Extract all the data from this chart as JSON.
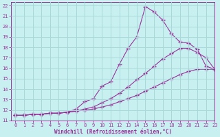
{
  "xlabel": "Windchill (Refroidissement éolien,°C)",
  "bg_color": "#c8f0f0",
  "grid_color": "#a8d8d8",
  "line_color": "#993399",
  "xlim": [
    -0.5,
    23
  ],
  "ylim": [
    11,
    22.3
  ],
  "xticks": [
    0,
    1,
    2,
    3,
    4,
    5,
    6,
    7,
    8,
    9,
    10,
    11,
    12,
    13,
    14,
    15,
    16,
    17,
    18,
    19,
    20,
    21,
    22,
    23
  ],
  "yticks": [
    11,
    12,
    13,
    14,
    15,
    16,
    17,
    18,
    19,
    20,
    21,
    22
  ],
  "curve1_x": [
    0,
    1,
    2,
    3,
    4,
    5,
    6,
    7,
    8,
    9,
    10,
    11,
    12,
    13,
    14,
    15,
    16,
    17,
    18,
    19,
    20,
    21,
    22,
    23
  ],
  "curve1_y": [
    11.5,
    11.5,
    11.6,
    11.6,
    11.7,
    11.7,
    11.8,
    12.1,
    12.8,
    13.1,
    14.3,
    14.7,
    16.4,
    17.9,
    19.0,
    21.9,
    21.4,
    20.6,
    19.3,
    18.5,
    18.4,
    17.8,
    16.2,
    15.9
  ],
  "curve2_x": [
    0,
    1,
    2,
    3,
    4,
    5,
    6,
    7,
    8,
    9,
    10,
    11,
    12,
    13,
    14,
    15,
    16,
    17,
    18,
    19,
    20,
    21,
    22,
    23
  ],
  "curve2_y": [
    11.5,
    11.5,
    11.6,
    11.6,
    11.7,
    11.7,
    11.8,
    11.9,
    12.1,
    12.3,
    12.7,
    13.1,
    13.6,
    14.2,
    14.9,
    15.5,
    16.2,
    16.9,
    17.4,
    17.9,
    17.9,
    17.5,
    17.0,
    15.9
  ],
  "curve3_x": [
    0,
    1,
    2,
    3,
    4,
    5,
    6,
    7,
    8,
    9,
    10,
    11,
    12,
    13,
    14,
    15,
    16,
    17,
    18,
    19,
    20,
    21,
    22,
    23
  ],
  "curve3_y": [
    11.5,
    11.5,
    11.6,
    11.6,
    11.7,
    11.7,
    11.8,
    11.9,
    12.0,
    12.1,
    12.3,
    12.5,
    12.8,
    13.1,
    13.4,
    13.8,
    14.2,
    14.6,
    15.0,
    15.4,
    15.7,
    15.9,
    15.9,
    15.9
  ]
}
